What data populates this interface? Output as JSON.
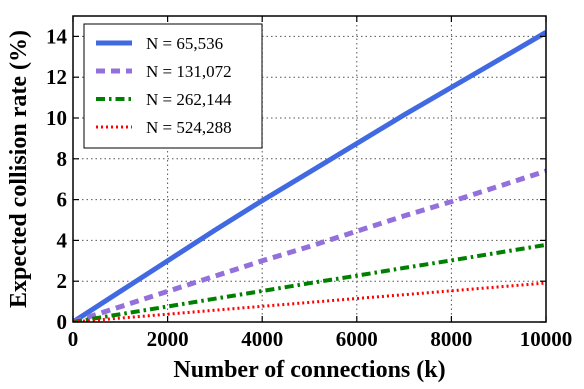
{
  "chart_data": {
    "type": "line",
    "xlabel": "Number of connections (k)",
    "ylabel": "Expected collision rate (%)",
    "xlim": [
      0,
      10000
    ],
    "ylim": [
      0,
      15
    ],
    "xticks": [
      "0",
      "2000",
      "4000",
      "6000",
      "8000",
      "10000"
    ],
    "yticks": [
      "0",
      "2",
      "4",
      "6",
      "8",
      "10",
      "12",
      "14"
    ],
    "grid": true,
    "legend_position": "top-left",
    "x": [
      0,
      1000,
      2000,
      3000,
      4000,
      5000,
      6000,
      7000,
      8000,
      9000,
      10000
    ],
    "series": [
      {
        "name": "N = 65,536",
        "style": "solid",
        "color": "#4169E1",
        "values": [
          0,
          1.5,
          3.0,
          4.5,
          5.95,
          7.35,
          8.75,
          10.15,
          11.5,
          12.85,
          14.2
        ]
      },
      {
        "name": "N = 131,072",
        "style": "dashed",
        "color": "#9370DB",
        "values": [
          0,
          0.75,
          1.5,
          2.25,
          3.0,
          3.7,
          4.45,
          5.2,
          5.9,
          6.65,
          7.4
        ]
      },
      {
        "name": "N = 262,144",
        "style": "dashdot",
        "color": "#008000",
        "values": [
          0,
          0.38,
          0.76,
          1.14,
          1.52,
          1.9,
          2.27,
          2.65,
          3.02,
          3.4,
          3.78
        ]
      },
      {
        "name": "N = 524,288",
        "style": "dotted",
        "color": "#FF0000",
        "values": [
          0,
          0.19,
          0.38,
          0.58,
          0.77,
          0.96,
          1.15,
          1.34,
          1.53,
          1.72,
          1.91
        ]
      }
    ]
  }
}
